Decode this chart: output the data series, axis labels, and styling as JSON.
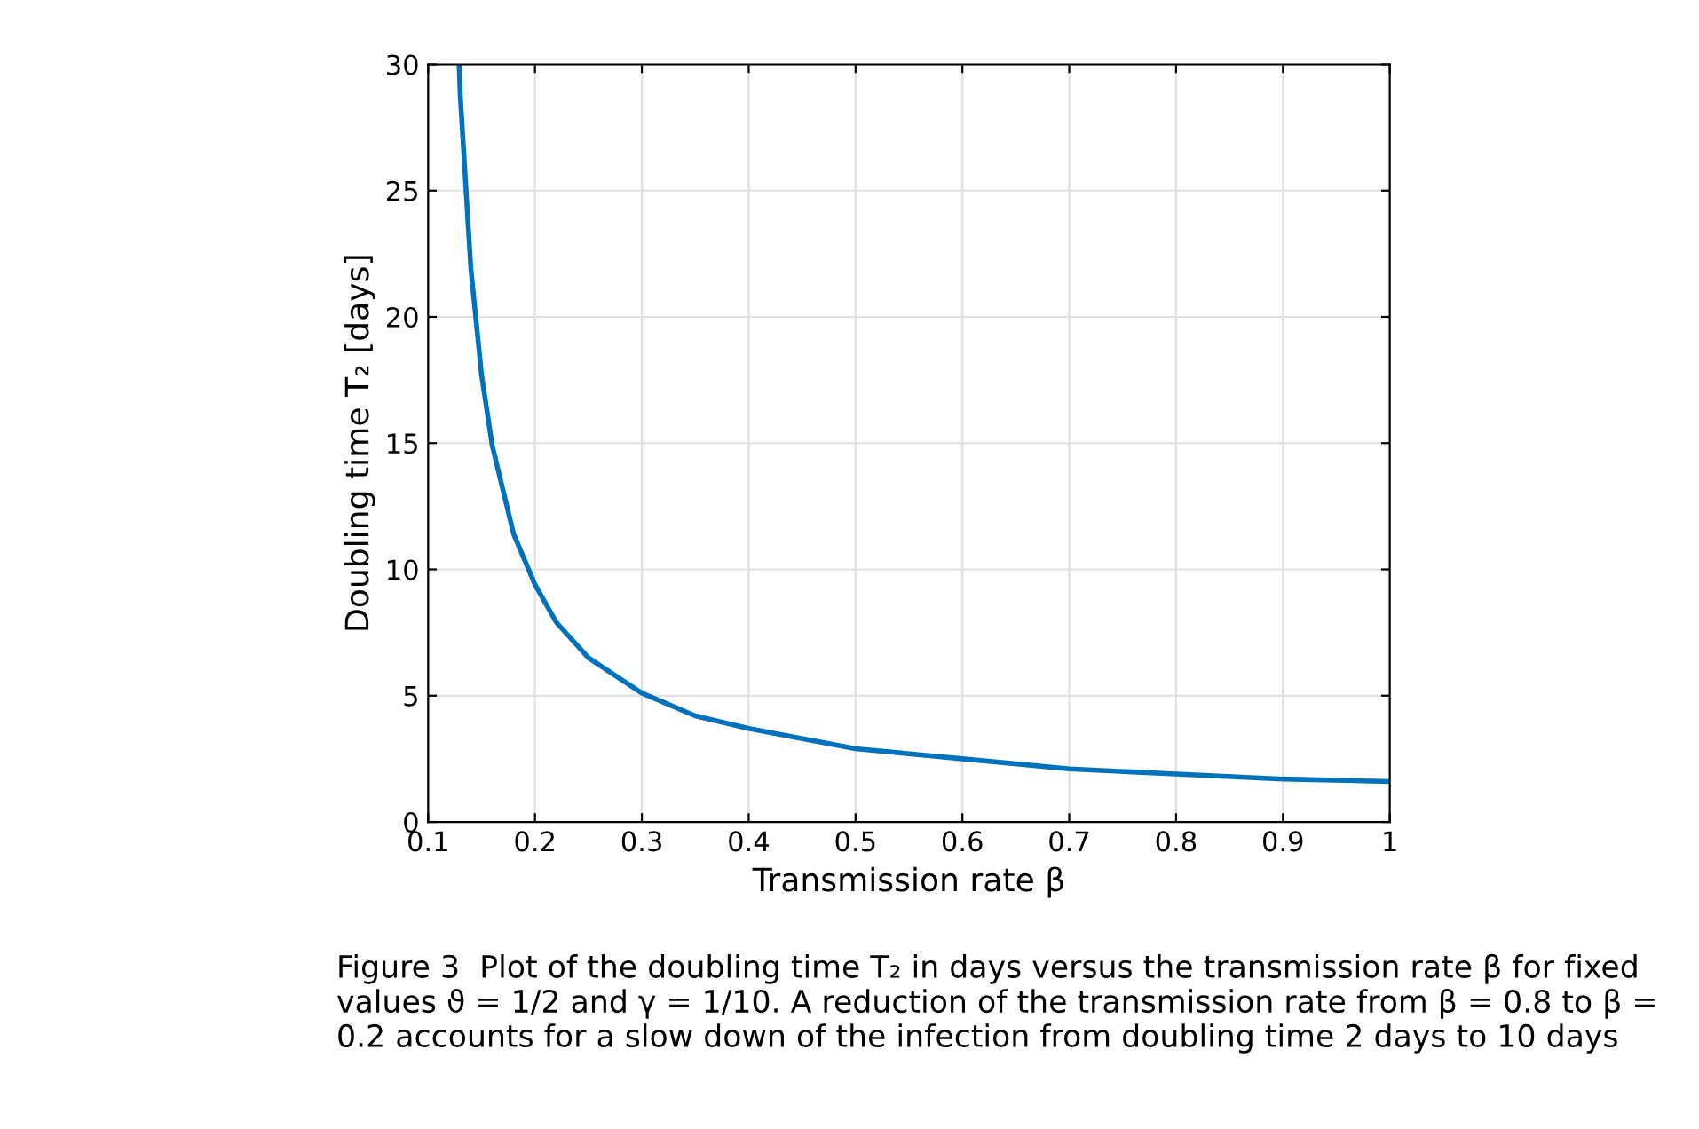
{
  "chart_data": {
    "type": "line",
    "xlabel": "Transmission rate β",
    "ylabel": "Doubling time T₂ [days]",
    "x": [
      0.129,
      0.13,
      0.14,
      0.15,
      0.16,
      0.18,
      0.2,
      0.22,
      0.25,
      0.3,
      0.35,
      0.4,
      0.5,
      0.6,
      0.7,
      0.8,
      0.9,
      1.0
    ],
    "series": [
      {
        "color": "#0072bd",
        "values": [
          30,
          28.8,
          21.9,
          17.7,
          14.9,
          11.4,
          9.4,
          7.9,
          6.5,
          5.1,
          4.2,
          3.7,
          2.9,
          2.5,
          2.1,
          1.9,
          1.7,
          1.6
        ]
      }
    ],
    "xlim": [
      0.1,
      1
    ],
    "xticks": [
      0.1,
      0.2,
      0.3,
      0.4,
      0.5,
      0.6,
      0.7,
      0.8,
      0.9,
      1
    ],
    "ylim": [
      0,
      30
    ],
    "yticks": [
      0,
      5,
      10,
      15,
      20,
      25,
      30
    ],
    "grid": true,
    "marker": "none",
    "line_style": "solid",
    "annotations": [
      "Figure 3  Plot of the doubling time T₂ in days versus the transmission rate β for fixed values ϑ = 1/2 and γ = 1/10. A reduction of the transmission rate from β = 0.8 to β = 0.2 accounts for a slow down of the infection from doubling time 2 days to 10 days"
    ]
  }
}
